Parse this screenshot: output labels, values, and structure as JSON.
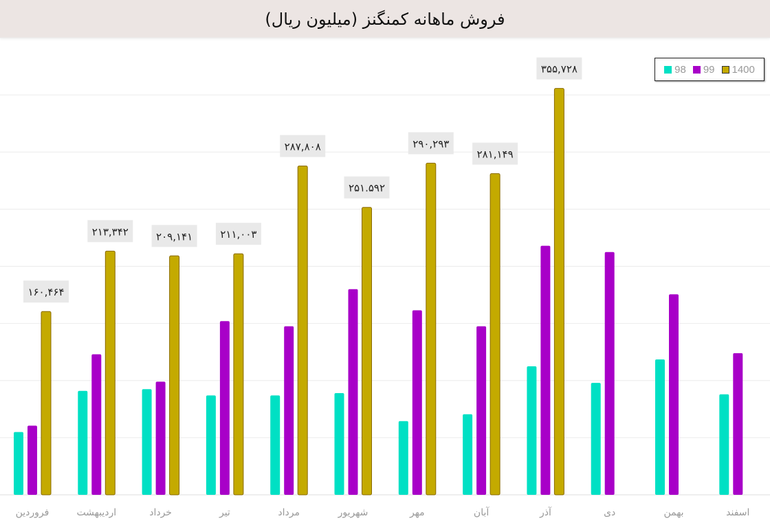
{
  "chart_data": {
    "type": "bar",
    "title": "فروش ماهانه کمنگنز (میلیون ریال)",
    "categories": [
      "فروردین",
      "اردیبهشت",
      "خرداد",
      "تیر",
      "مرداد",
      "شهریور",
      "مهر",
      "آبان",
      "آذر",
      "دی",
      "بهمن",
      "اسفند"
    ],
    "series": [
      {
        "name": "98",
        "color": "#00e0c4",
        "values": [
          55000,
          91000,
          92500,
          87000,
          87000,
          89000,
          64500,
          70500,
          112500,
          98000,
          118500,
          88000
        ]
      },
      {
        "name": "99",
        "color": "#a800c8",
        "values": [
          60500,
          123000,
          99000,
          152000,
          147500,
          180000,
          161500,
          147500,
          218000,
          212500,
          175500,
          124000
        ]
      },
      {
        "name": "1400",
        "color": "#c4aa00",
        "values": [
          160464,
          213342,
          209141,
          211003,
          287808,
          251592,
          290293,
          281149,
          355728,
          null,
          null,
          null
        ]
      }
    ],
    "data_labels": [
      "۱۶۰,۴۶۴",
      "۲۱۳,۳۴۲",
      "۲۰۹,۱۴۱",
      "۲۱۱,۰۰۳",
      "۲۸۷,۸۰۸",
      "۲۵۱.۵۹۲",
      "۲۹۰,۲۹۳",
      "۲۸۱,۱۴۹",
      "۳۵۵,۷۲۸",
      null,
      null,
      null
    ],
    "ylim": [
      0,
      400000
    ],
    "grid": true,
    "legend": "top-right"
  }
}
